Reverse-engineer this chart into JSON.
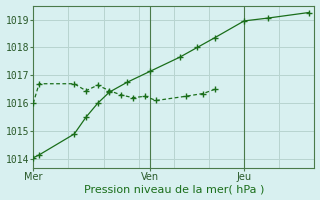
{
  "xlabel": "Pression niveau de la mer( hPa )",
  "bg_color": "#d8f0f0",
  "line_color": "#1a6e1a",
  "grid_color": "#b8d4d0",
  "axis_color": "#4a7a4a",
  "ylim": [
    1013.7,
    1019.5
  ],
  "yticks": [
    1014,
    1015,
    1016,
    1017,
    1018,
    1019
  ],
  "xlim": [
    0,
    24
  ],
  "x_tick_positions": [
    0,
    10,
    18
  ],
  "x_tick_labels": [
    "Mer",
    "Ven",
    "Jeu"
  ],
  "vline_positions": [
    10,
    18
  ],
  "line1_x": [
    0,
    0.5,
    3.5,
    4.5,
    5.5,
    6.5,
    7.5,
    8.5,
    9.5,
    10.5,
    13.0,
    14.5,
    15.5
  ],
  "line1_y": [
    1016.0,
    1016.7,
    1016.7,
    1016.45,
    1016.65,
    1016.45,
    1016.3,
    1016.2,
    1016.25,
    1016.1,
    1016.25,
    1016.35,
    1016.5
  ],
  "line2_x": [
    0,
    0.5,
    3.5,
    4.5,
    5.5,
    6.5,
    8.0,
    10.0,
    12.5,
    14.0,
    15.5,
    18.0,
    20.0,
    23.5
  ],
  "line2_y": [
    1014.05,
    1014.15,
    1014.9,
    1015.5,
    1016.0,
    1016.4,
    1016.75,
    1017.15,
    1017.65,
    1018.0,
    1018.35,
    1018.95,
    1019.05,
    1019.25
  ],
  "xlabel_color": "#1a6e1a",
  "xlabel_fontsize": 8,
  "tick_fontsize": 7,
  "tick_color": "#2a5a2a"
}
